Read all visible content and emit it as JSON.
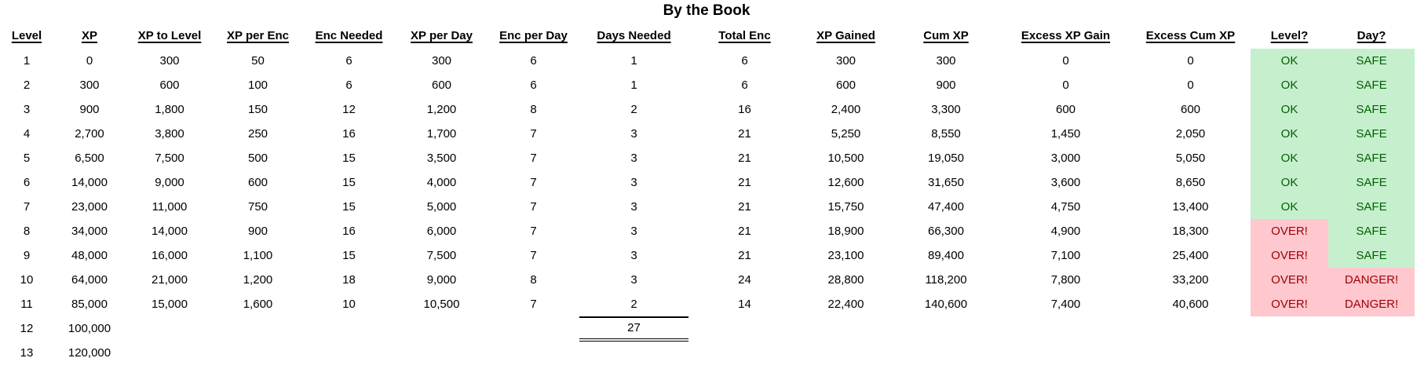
{
  "title": "By the Book",
  "columns": [
    {
      "key": "level",
      "label": "Level"
    },
    {
      "key": "xp",
      "label": "XP"
    },
    {
      "key": "xp_to_level",
      "label": "XP to Level"
    },
    {
      "key": "xp_per_enc",
      "label": "XP per Enc"
    },
    {
      "key": "enc_needed",
      "label": "Enc Needed"
    },
    {
      "key": "xp_per_day",
      "label": "XP per Day"
    },
    {
      "key": "enc_per_day",
      "label": "Enc per Day"
    },
    {
      "key": "days_needed",
      "label": "Days Needed"
    },
    {
      "key": "total_enc",
      "label": "Total Enc"
    },
    {
      "key": "xp_gained",
      "label": "XP Gained"
    },
    {
      "key": "cum_xp",
      "label": "Cum XP"
    },
    {
      "key": "excess_xp_gain",
      "label": "Excess XP Gain"
    },
    {
      "key": "excess_cum_xp",
      "label": "Excess Cum XP"
    },
    {
      "key": "level_status",
      "label": "Level?"
    },
    {
      "key": "day_status",
      "label": "Day?"
    }
  ],
  "rows": [
    {
      "level": "1",
      "xp": "0",
      "xp_to_level": "300",
      "xp_per_enc": "50",
      "enc_needed": "6",
      "xp_per_day": "300",
      "enc_per_day": "6",
      "days_needed": "1",
      "total_enc": "6",
      "xp_gained": "300",
      "cum_xp": "300",
      "excess_xp_gain": "0",
      "excess_cum_xp": "0",
      "level_status": "OK",
      "day_status": "SAFE"
    },
    {
      "level": "2",
      "xp": "300",
      "xp_to_level": "600",
      "xp_per_enc": "100",
      "enc_needed": "6",
      "xp_per_day": "600",
      "enc_per_day": "6",
      "days_needed": "1",
      "total_enc": "6",
      "xp_gained": "600",
      "cum_xp": "900",
      "excess_xp_gain": "0",
      "excess_cum_xp": "0",
      "level_status": "OK",
      "day_status": "SAFE"
    },
    {
      "level": "3",
      "xp": "900",
      "xp_to_level": "1,800",
      "xp_per_enc": "150",
      "enc_needed": "12",
      "xp_per_day": "1,200",
      "enc_per_day": "8",
      "days_needed": "2",
      "total_enc": "16",
      "xp_gained": "2,400",
      "cum_xp": "3,300",
      "excess_xp_gain": "600",
      "excess_cum_xp": "600",
      "level_status": "OK",
      "day_status": "SAFE"
    },
    {
      "level": "4",
      "xp": "2,700",
      "xp_to_level": "3,800",
      "xp_per_enc": "250",
      "enc_needed": "16",
      "xp_per_day": "1,700",
      "enc_per_day": "7",
      "days_needed": "3",
      "total_enc": "21",
      "xp_gained": "5,250",
      "cum_xp": "8,550",
      "excess_xp_gain": "1,450",
      "excess_cum_xp": "2,050",
      "level_status": "OK",
      "day_status": "SAFE"
    },
    {
      "level": "5",
      "xp": "6,500",
      "xp_to_level": "7,500",
      "xp_per_enc": "500",
      "enc_needed": "15",
      "xp_per_day": "3,500",
      "enc_per_day": "7",
      "days_needed": "3",
      "total_enc": "21",
      "xp_gained": "10,500",
      "cum_xp": "19,050",
      "excess_xp_gain": "3,000",
      "excess_cum_xp": "5,050",
      "level_status": "OK",
      "day_status": "SAFE"
    },
    {
      "level": "6",
      "xp": "14,000",
      "xp_to_level": "9,000",
      "xp_per_enc": "600",
      "enc_needed": "15",
      "xp_per_day": "4,000",
      "enc_per_day": "7",
      "days_needed": "3",
      "total_enc": "21",
      "xp_gained": "12,600",
      "cum_xp": "31,650",
      "excess_xp_gain": "3,600",
      "excess_cum_xp": "8,650",
      "level_status": "OK",
      "day_status": "SAFE"
    },
    {
      "level": "7",
      "xp": "23,000",
      "xp_to_level": "11,000",
      "xp_per_enc": "750",
      "enc_needed": "15",
      "xp_per_day": "5,000",
      "enc_per_day": "7",
      "days_needed": "3",
      "total_enc": "21",
      "xp_gained": "15,750",
      "cum_xp": "47,400",
      "excess_xp_gain": "4,750",
      "excess_cum_xp": "13,400",
      "level_status": "OK",
      "day_status": "SAFE"
    },
    {
      "level": "8",
      "xp": "34,000",
      "xp_to_level": "14,000",
      "xp_per_enc": "900",
      "enc_needed": "16",
      "xp_per_day": "6,000",
      "enc_per_day": "7",
      "days_needed": "3",
      "total_enc": "21",
      "xp_gained": "18,900",
      "cum_xp": "66,300",
      "excess_xp_gain": "4,900",
      "excess_cum_xp": "18,300",
      "level_status": "OVER!",
      "day_status": "SAFE"
    },
    {
      "level": "9",
      "xp": "48,000",
      "xp_to_level": "16,000",
      "xp_per_enc": "1,100",
      "enc_needed": "15",
      "xp_per_day": "7,500",
      "enc_per_day": "7",
      "days_needed": "3",
      "total_enc": "21",
      "xp_gained": "23,100",
      "cum_xp": "89,400",
      "excess_xp_gain": "7,100",
      "excess_cum_xp": "25,400",
      "level_status": "OVER!",
      "day_status": "SAFE"
    },
    {
      "level": "10",
      "xp": "64,000",
      "xp_to_level": "21,000",
      "xp_per_enc": "1,200",
      "enc_needed": "18",
      "xp_per_day": "9,000",
      "enc_per_day": "8",
      "days_needed": "3",
      "total_enc": "24",
      "xp_gained": "28,800",
      "cum_xp": "118,200",
      "excess_xp_gain": "7,800",
      "excess_cum_xp": "33,200",
      "level_status": "OVER!",
      "day_status": "DANGER!"
    },
    {
      "level": "11",
      "xp": "85,000",
      "xp_to_level": "15,000",
      "xp_per_enc": "1,600",
      "enc_needed": "10",
      "xp_per_day": "10,500",
      "enc_per_day": "7",
      "days_needed": "2",
      "total_enc": "14",
      "xp_gained": "22,400",
      "cum_xp": "140,600",
      "excess_xp_gain": "7,400",
      "excess_cum_xp": "40,600",
      "level_status": "OVER!",
      "day_status": "DANGER!"
    },
    {
      "level": "12",
      "xp": "100,000",
      "days_needed_total": "27"
    },
    {
      "level": "13",
      "xp": "120,000"
    }
  ],
  "status_legend": {
    "good_values": [
      "OK",
      "SAFE"
    ],
    "bad_values": [
      "OVER!",
      "DANGER!"
    ]
  },
  "status_colors": {
    "good_bg": "#C6EFCE",
    "good_text": "#006100",
    "bad_bg": "#FFC7CE",
    "bad_text": "#9C0006"
  }
}
